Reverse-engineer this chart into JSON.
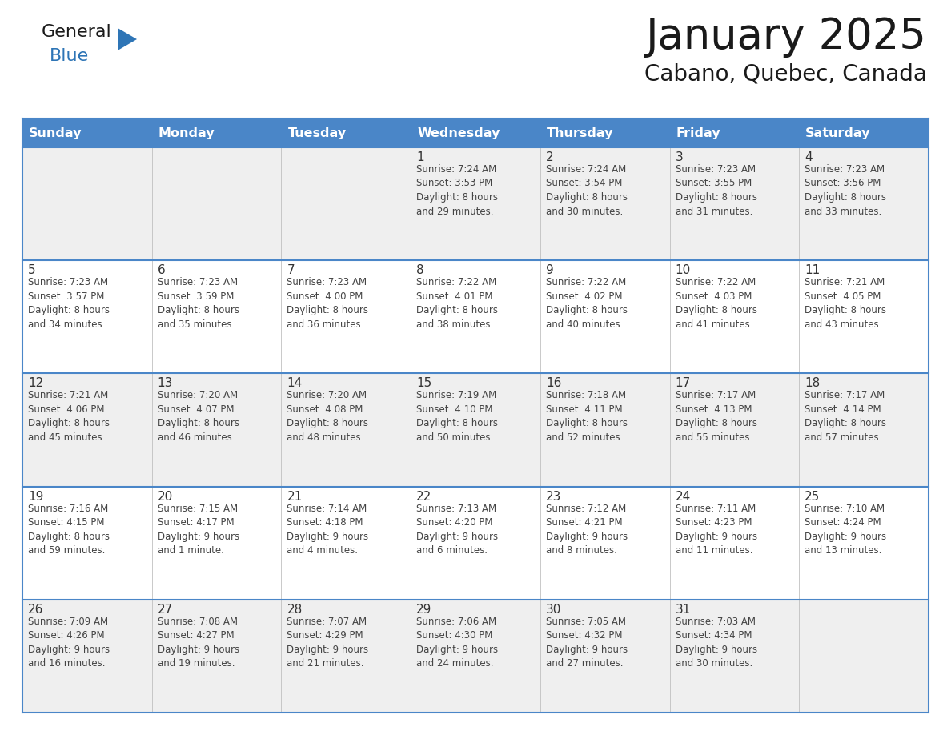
{
  "title": "January 2025",
  "subtitle": "Cabano, Quebec, Canada",
  "days_of_week": [
    "Sunday",
    "Monday",
    "Tuesday",
    "Wednesday",
    "Thursday",
    "Friday",
    "Saturday"
  ],
  "header_bg": "#4A86C8",
  "header_text": "#FFFFFF",
  "row_bg_odd": "#EFEFEF",
  "row_bg_even": "#FFFFFF",
  "cell_border_color": "#4A86C8",
  "day_number_color": "#333333",
  "day_text_color": "#444444",
  "title_color": "#1a1a1a",
  "subtitle_color": "#1a1a1a",
  "general_color": "#1a1a1a",
  "blue_color": "#2E75B6",
  "fig_width": 11.88,
  "fig_height": 9.18,
  "dpi": 100,
  "calendar_data": [
    [
      {
        "day": "",
        "info": ""
      },
      {
        "day": "",
        "info": ""
      },
      {
        "day": "",
        "info": ""
      },
      {
        "day": "1",
        "info": "Sunrise: 7:24 AM\nSunset: 3:53 PM\nDaylight: 8 hours\nand 29 minutes."
      },
      {
        "day": "2",
        "info": "Sunrise: 7:24 AM\nSunset: 3:54 PM\nDaylight: 8 hours\nand 30 minutes."
      },
      {
        "day": "3",
        "info": "Sunrise: 7:23 AM\nSunset: 3:55 PM\nDaylight: 8 hours\nand 31 minutes."
      },
      {
        "day": "4",
        "info": "Sunrise: 7:23 AM\nSunset: 3:56 PM\nDaylight: 8 hours\nand 33 minutes."
      }
    ],
    [
      {
        "day": "5",
        "info": "Sunrise: 7:23 AM\nSunset: 3:57 PM\nDaylight: 8 hours\nand 34 minutes."
      },
      {
        "day": "6",
        "info": "Sunrise: 7:23 AM\nSunset: 3:59 PM\nDaylight: 8 hours\nand 35 minutes."
      },
      {
        "day": "7",
        "info": "Sunrise: 7:23 AM\nSunset: 4:00 PM\nDaylight: 8 hours\nand 36 minutes."
      },
      {
        "day": "8",
        "info": "Sunrise: 7:22 AM\nSunset: 4:01 PM\nDaylight: 8 hours\nand 38 minutes."
      },
      {
        "day": "9",
        "info": "Sunrise: 7:22 AM\nSunset: 4:02 PM\nDaylight: 8 hours\nand 40 minutes."
      },
      {
        "day": "10",
        "info": "Sunrise: 7:22 AM\nSunset: 4:03 PM\nDaylight: 8 hours\nand 41 minutes."
      },
      {
        "day": "11",
        "info": "Sunrise: 7:21 AM\nSunset: 4:05 PM\nDaylight: 8 hours\nand 43 minutes."
      }
    ],
    [
      {
        "day": "12",
        "info": "Sunrise: 7:21 AM\nSunset: 4:06 PM\nDaylight: 8 hours\nand 45 minutes."
      },
      {
        "day": "13",
        "info": "Sunrise: 7:20 AM\nSunset: 4:07 PM\nDaylight: 8 hours\nand 46 minutes."
      },
      {
        "day": "14",
        "info": "Sunrise: 7:20 AM\nSunset: 4:08 PM\nDaylight: 8 hours\nand 48 minutes."
      },
      {
        "day": "15",
        "info": "Sunrise: 7:19 AM\nSunset: 4:10 PM\nDaylight: 8 hours\nand 50 minutes."
      },
      {
        "day": "16",
        "info": "Sunrise: 7:18 AM\nSunset: 4:11 PM\nDaylight: 8 hours\nand 52 minutes."
      },
      {
        "day": "17",
        "info": "Sunrise: 7:17 AM\nSunset: 4:13 PM\nDaylight: 8 hours\nand 55 minutes."
      },
      {
        "day": "18",
        "info": "Sunrise: 7:17 AM\nSunset: 4:14 PM\nDaylight: 8 hours\nand 57 minutes."
      }
    ],
    [
      {
        "day": "19",
        "info": "Sunrise: 7:16 AM\nSunset: 4:15 PM\nDaylight: 8 hours\nand 59 minutes."
      },
      {
        "day": "20",
        "info": "Sunrise: 7:15 AM\nSunset: 4:17 PM\nDaylight: 9 hours\nand 1 minute."
      },
      {
        "day": "21",
        "info": "Sunrise: 7:14 AM\nSunset: 4:18 PM\nDaylight: 9 hours\nand 4 minutes."
      },
      {
        "day": "22",
        "info": "Sunrise: 7:13 AM\nSunset: 4:20 PM\nDaylight: 9 hours\nand 6 minutes."
      },
      {
        "day": "23",
        "info": "Sunrise: 7:12 AM\nSunset: 4:21 PM\nDaylight: 9 hours\nand 8 minutes."
      },
      {
        "day": "24",
        "info": "Sunrise: 7:11 AM\nSunset: 4:23 PM\nDaylight: 9 hours\nand 11 minutes."
      },
      {
        "day": "25",
        "info": "Sunrise: 7:10 AM\nSunset: 4:24 PM\nDaylight: 9 hours\nand 13 minutes."
      }
    ],
    [
      {
        "day": "26",
        "info": "Sunrise: 7:09 AM\nSunset: 4:26 PM\nDaylight: 9 hours\nand 16 minutes."
      },
      {
        "day": "27",
        "info": "Sunrise: 7:08 AM\nSunset: 4:27 PM\nDaylight: 9 hours\nand 19 minutes."
      },
      {
        "day": "28",
        "info": "Sunrise: 7:07 AM\nSunset: 4:29 PM\nDaylight: 9 hours\nand 21 minutes."
      },
      {
        "day": "29",
        "info": "Sunrise: 7:06 AM\nSunset: 4:30 PM\nDaylight: 9 hours\nand 24 minutes."
      },
      {
        "day": "30",
        "info": "Sunrise: 7:05 AM\nSunset: 4:32 PM\nDaylight: 9 hours\nand 27 minutes."
      },
      {
        "day": "31",
        "info": "Sunrise: 7:03 AM\nSunset: 4:34 PM\nDaylight: 9 hours\nand 30 minutes."
      },
      {
        "day": "",
        "info": ""
      }
    ]
  ]
}
